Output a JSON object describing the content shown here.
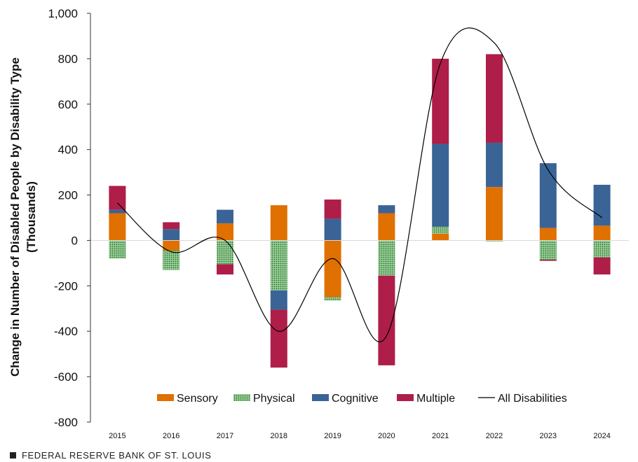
{
  "chart_data": {
    "type": "bar",
    "stacked": true,
    "title": "",
    "xlabel": "",
    "ylabel": "Change in Number of Disabled People by Disability Type",
    "ylabel_unit": "(Thousands)",
    "ylim": [
      -800,
      1000
    ],
    "yticks": [
      -800,
      -600,
      -400,
      -200,
      0,
      200,
      400,
      600,
      800,
      1000
    ],
    "ytick_labels": [
      "-800",
      "-600",
      "-400",
      "-200",
      "0",
      "200",
      "400",
      "600",
      "800",
      "1,000"
    ],
    "categories": [
      "2015",
      "2016",
      "2017",
      "2018",
      "2019",
      "2020",
      "2021",
      "2022",
      "2023",
      "2024"
    ],
    "series": [
      {
        "name": "Sensory",
        "color": "#E07000",
        "values": [
          120,
          -45,
          75,
          155,
          -250,
          120,
          30,
          235,
          55,
          65
        ]
      },
      {
        "name": "Physical",
        "color": "#2E8B2E",
        "pattern": "dots",
        "values": [
          -80,
          -85,
          -105,
          -220,
          -15,
          -155,
          30,
          -5,
          -85,
          -75
        ]
      },
      {
        "name": "Cognitive",
        "color": "#3A6496",
        "values": [
          15,
          50,
          60,
          -85,
          95,
          35,
          365,
          195,
          285,
          180
        ]
      },
      {
        "name": "Multiple",
        "color": "#AE1E48",
        "values": [
          105,
          30,
          -45,
          -255,
          85,
          -395,
          375,
          390,
          -5,
          -75
        ]
      }
    ],
    "line": {
      "name": "All Disabilities",
      "color": "#000000",
      "values": [
        165,
        -50,
        0,
        -400,
        -80,
        -420,
        780,
        870,
        310,
        100
      ]
    },
    "legend_position": "bottom-inside"
  },
  "footer": {
    "text": "FEDERAL RESERVE BANK OF ST. LOUIS"
  }
}
